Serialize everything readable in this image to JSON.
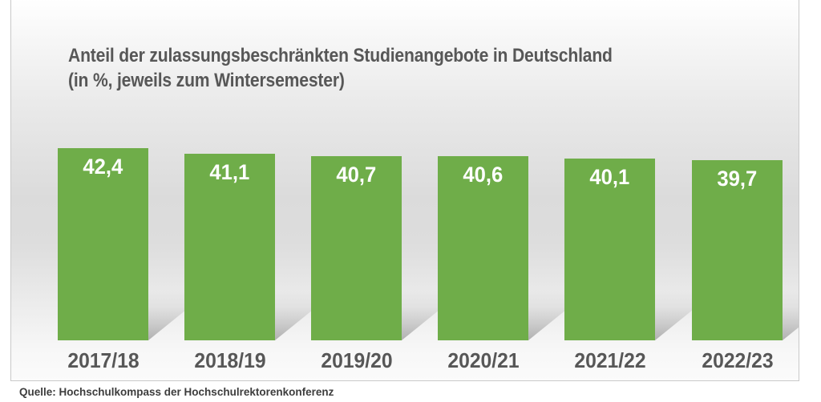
{
  "chart": {
    "title_line1": "Anteil der zulassungsbeschränkten Studienangebote in Deutschland",
    "title_line2": "(in %, jeweils zum Wintersemester)",
    "source": "Quelle: Hochschulkompass der Hochschulrektorenkonferenz"
  },
  "chart_data": {
    "type": "bar",
    "title": "Anteil der zulassungsbeschränkten Studienangebote in Deutschland",
    "subtitle": "(in %, jeweils zum Wintersemester)",
    "unit": "%",
    "categories": [
      "2017/18",
      "2018/19",
      "2019/20",
      "2020/21",
      "2021/22",
      "2022/23"
    ],
    "values": [
      42.4,
      41.1,
      40.7,
      40.6,
      40.1,
      39.7
    ],
    "value_labels": [
      "42,4",
      "41,1",
      "40,7",
      "40,6",
      "40,1",
      "39,7"
    ],
    "baseline": 0,
    "grid": false,
    "legend": false,
    "value_label_position": "inside-top",
    "source": "Quelle: Hochschulkompass der Hochschulrektorenkonferenz"
  },
  "colors": {
    "bar": "#6fad49",
    "title_text": "#575757",
    "axis_label_text": "#575757",
    "value_label_text": "#ffffff",
    "source_text": "#3d3d3d",
    "panel_border": "#c9c9c9"
  }
}
